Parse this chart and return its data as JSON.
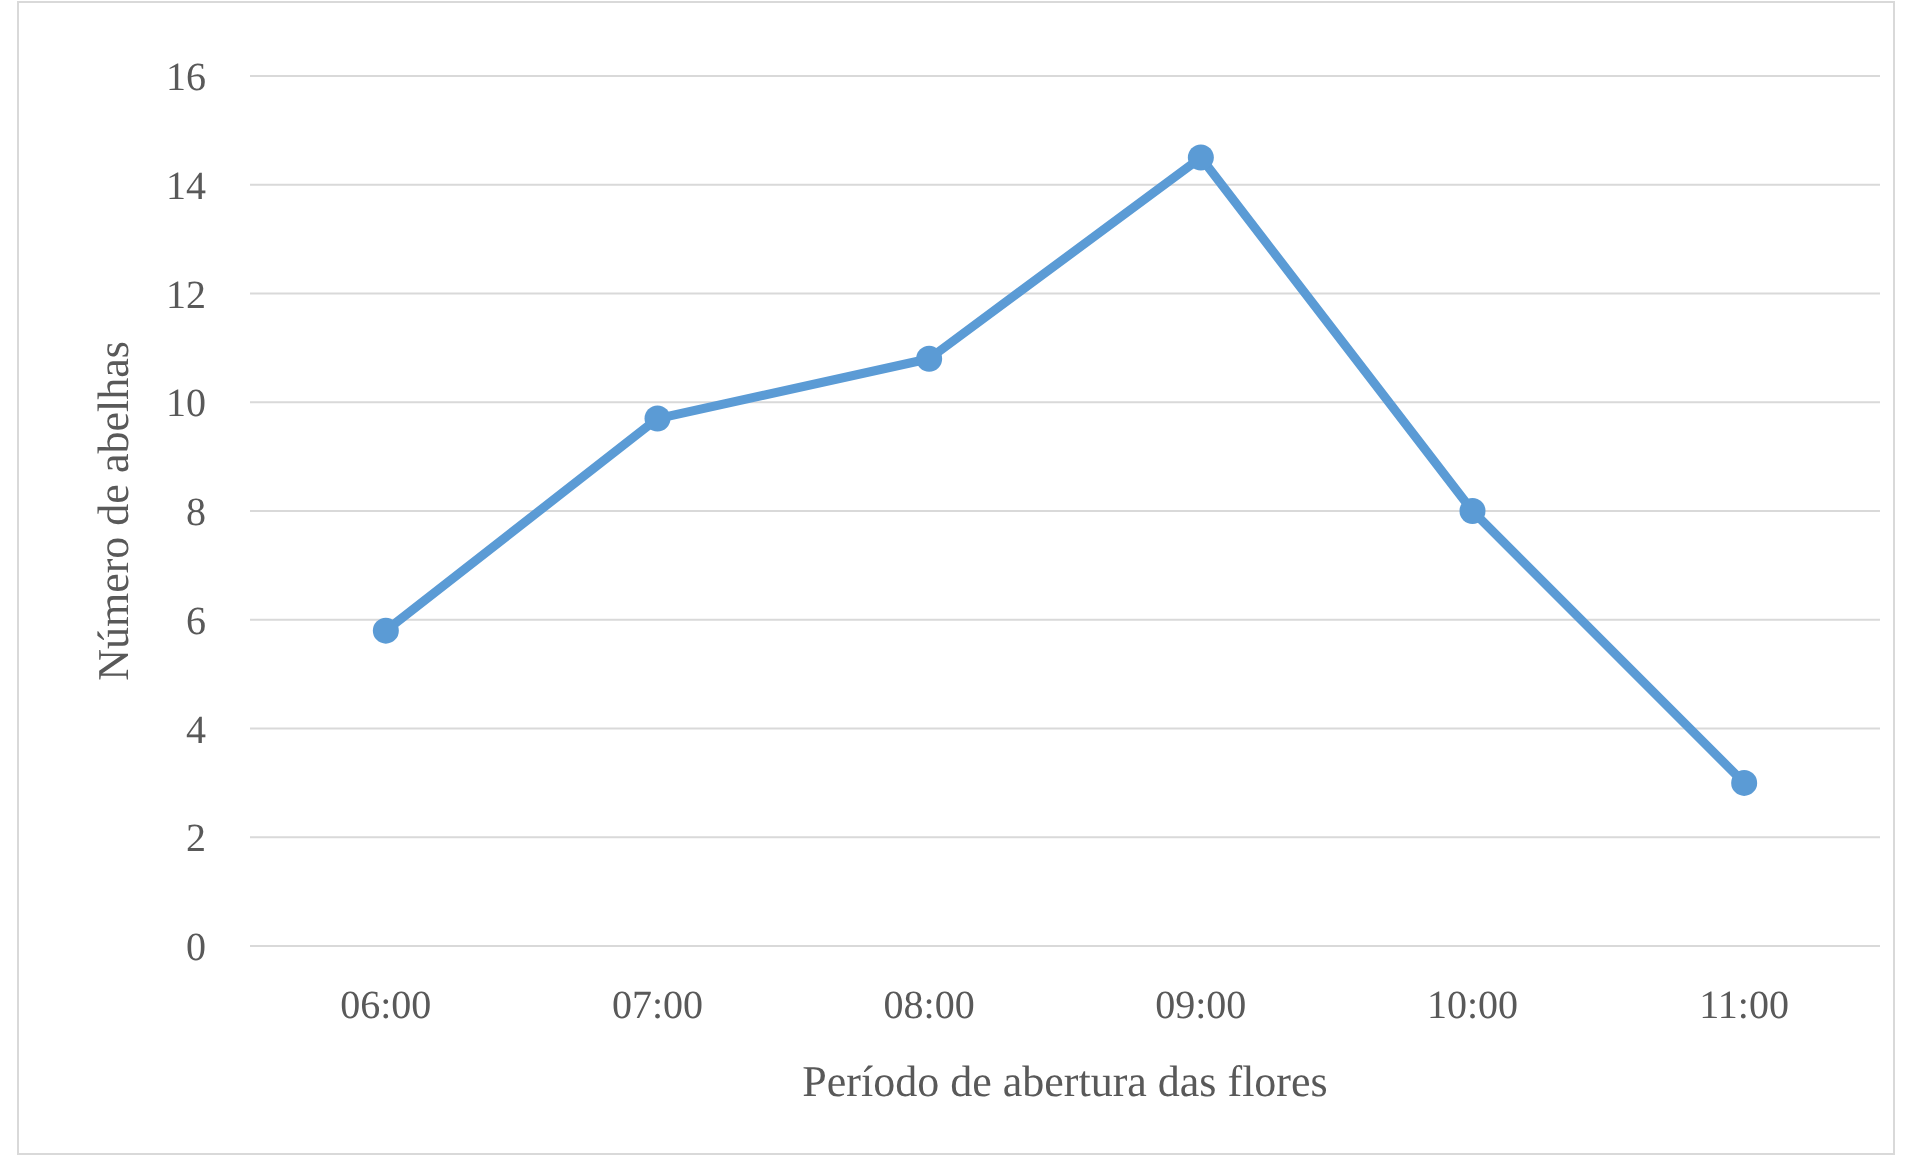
{
  "chart_data": {
    "type": "line",
    "xlabel": "Período de abertura das flores",
    "ylabel": "Número de abelhas",
    "categories": [
      "06:00",
      "07:00",
      "08:00",
      "09:00",
      "10:00",
      "11:00"
    ],
    "series": [
      {
        "color": "#5b9bd5",
        "values": [
          5.8,
          9.7,
          10.8,
          14.5,
          8,
          3
        ]
      }
    ],
    "ylim": [
      0,
      16
    ],
    "yticks": [
      0,
      2,
      4,
      6,
      8,
      10,
      12,
      14,
      16
    ],
    "grid": "y",
    "marker": "circle",
    "line_style": "solid"
  }
}
